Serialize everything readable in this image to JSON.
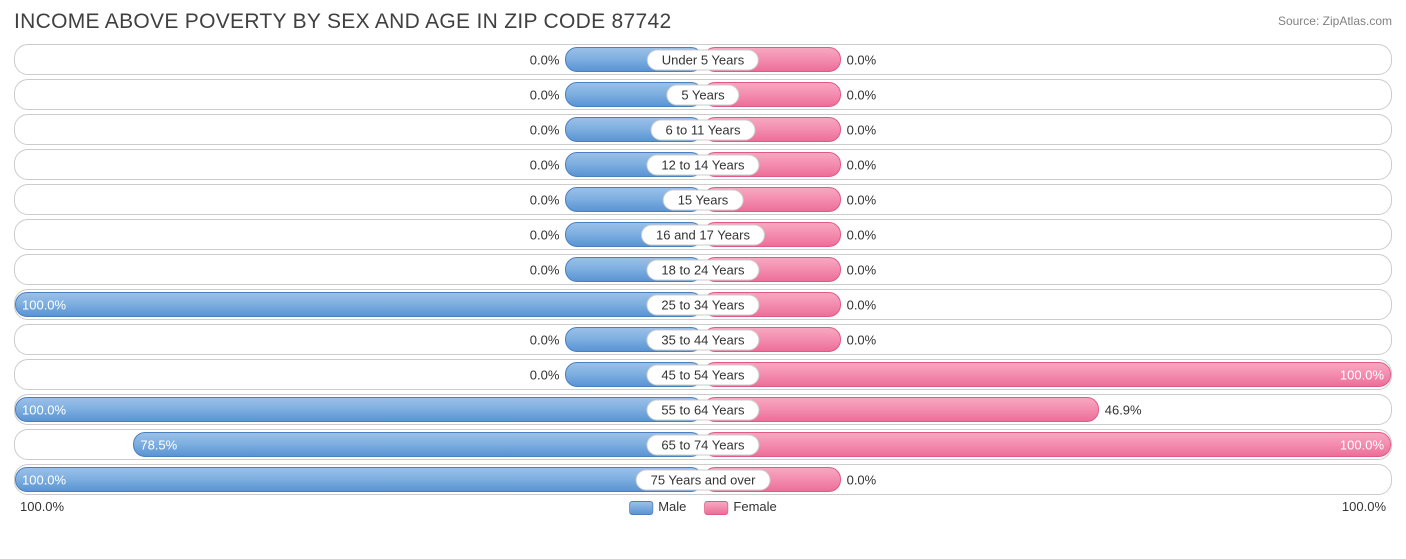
{
  "title": "INCOME ABOVE POVERTY BY SEX AND AGE IN ZIP CODE 87742",
  "source": "Source: ZipAtlas.com",
  "chart": {
    "type": "diverging-bar",
    "male_color": "#6fa3db",
    "female_color": "#ef7ba3",
    "border_color": "#cccccc",
    "background_color": "#ffffff",
    "min_bar_pct": 20,
    "axis_left": "100.0%",
    "axis_right": "100.0%",
    "legend": {
      "male": "Male",
      "female": "Female"
    },
    "rows": [
      {
        "label": "Under 5 Years",
        "male": 0.0,
        "female": 0.0
      },
      {
        "label": "5 Years",
        "male": 0.0,
        "female": 0.0
      },
      {
        "label": "6 to 11 Years",
        "male": 0.0,
        "female": 0.0
      },
      {
        "label": "12 to 14 Years",
        "male": 0.0,
        "female": 0.0
      },
      {
        "label": "15 Years",
        "male": 0.0,
        "female": 0.0
      },
      {
        "label": "16 and 17 Years",
        "male": 0.0,
        "female": 0.0
      },
      {
        "label": "18 to 24 Years",
        "male": 0.0,
        "female": 0.0
      },
      {
        "label": "25 to 34 Years",
        "male": 100.0,
        "female": 0.0
      },
      {
        "label": "35 to 44 Years",
        "male": 0.0,
        "female": 0.0
      },
      {
        "label": "45 to 54 Years",
        "male": 0.0,
        "female": 100.0
      },
      {
        "label": "55 to 64 Years",
        "male": 100.0,
        "female": 46.9
      },
      {
        "label": "65 to 74 Years",
        "male": 78.5,
        "female": 100.0
      },
      {
        "label": "75 Years and over",
        "male": 100.0,
        "female": 0.0
      }
    ]
  }
}
